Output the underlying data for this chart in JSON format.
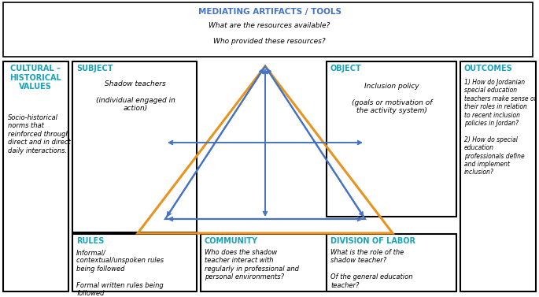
{
  "title_top": "MEDIATING ARTIFACTS / TOOLS",
  "subtitle1": "What are the resources available?",
  "subtitle2": "Who provided these resources?",
  "box_cultural_title": "CULTURAL –\nHISTORICAL\nVALUES",
  "box_cultural_body": "Socio-historical\nnorms that\nreinforced through\ndirect and in direct\ndaily interactions.",
  "box_subject_title": "SUBJECT",
  "box_subject_body": "Shadow teachers\n\n(individual engaged in\naction)",
  "box_object_title": "OBJECT",
  "box_object_body": "Inclusion policy\n\n(goals or motivation of\nthe activity system)",
  "box_outcomes_title": "OUTCOMES",
  "box_outcomes_body": "1) How do Jordanian\nspecial education\nteachers make sense of\ntheir roles in relation\nto recent inclusion\npolicies in Jordan?\n\n2) How do special\neducation\nprofessionals define\nand implement\ninclusion?",
  "box_rules_title": "RULES",
  "box_rules_body": "Informal/\ncontextual/unspoken rules\nbeing followed\n\nFormal written rules being\nfollowed",
  "box_community_title": "COMMUNITY",
  "box_community_body": "Who does the shadow\nteacher interact with\nregularly in professional and\npersonal environments?",
  "box_division_title": "DIVISION OF LABOR",
  "box_division_body": "What is the role of the\nshadow teacher?\n\nOf the general education\nteacher?\n\nOf the administration?\n\nOf the funding organization?",
  "orange_color": "#E8931D",
  "blue_color": "#4472C4",
  "title_color": "#4472C4",
  "box_title_color": "#17A3B8",
  "text_color": "#000000",
  "bg_color": "#FFFFFF"
}
